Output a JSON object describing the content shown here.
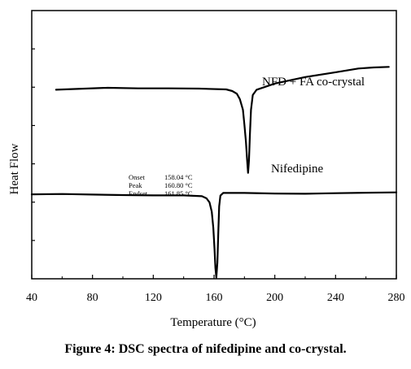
{
  "caption": "Figure 4: DSC spectra of nifedipine and co-crystal.",
  "chart_data": {
    "type": "line",
    "title": "",
    "xlabel": "Temperature (°C)",
    "ylabel": "Heat Flow",
    "xlim": [
      40,
      280
    ],
    "x_ticks": [
      40,
      80,
      120,
      160,
      200,
      240,
      280
    ],
    "y_tick_labels_shown": false,
    "grid": false,
    "legend": "none",
    "series": [
      {
        "name": "NFD + FA co-crystal",
        "color": "#000000",
        "points": [
          [
            56,
            0.705
          ],
          [
            70,
            0.708
          ],
          [
            90,
            0.712
          ],
          [
            110,
            0.71
          ],
          [
            130,
            0.71
          ],
          [
            150,
            0.709
          ],
          [
            168,
            0.706
          ],
          [
            172,
            0.7
          ],
          [
            175,
            0.69
          ],
          [
            177,
            0.67
          ],
          [
            179,
            0.63
          ],
          [
            180,
            0.575
          ],
          [
            181,
            0.51
          ],
          [
            181.8,
            0.44
          ],
          [
            182.4,
            0.395
          ],
          [
            183,
            0.44
          ],
          [
            183.6,
            0.54
          ],
          [
            184.3,
            0.63
          ],
          [
            185.5,
            0.685
          ],
          [
            188,
            0.705
          ],
          [
            200,
            0.728
          ],
          [
            220,
            0.752
          ],
          [
            240,
            0.77
          ],
          [
            255,
            0.784
          ],
          [
            265,
            0.788
          ],
          [
            275,
            0.79
          ]
        ]
      },
      {
        "name": "Nifedipine",
        "color": "#000000",
        "points": [
          [
            40,
            0.315
          ],
          [
            60,
            0.316
          ],
          [
            80,
            0.314
          ],
          [
            100,
            0.312
          ],
          [
            120,
            0.311
          ],
          [
            140,
            0.311
          ],
          [
            152,
            0.308
          ],
          [
            155,
            0.3
          ],
          [
            157,
            0.285
          ],
          [
            158.5,
            0.25
          ],
          [
            159.5,
            0.19
          ],
          [
            160.3,
            0.11
          ],
          [
            160.9,
            0.04
          ],
          [
            161.5,
            0.005
          ],
          [
            162.2,
            0.06
          ],
          [
            162.8,
            0.17
          ],
          [
            163.4,
            0.27
          ],
          [
            164.2,
            0.31
          ],
          [
            166,
            0.32
          ],
          [
            180,
            0.32
          ],
          [
            200,
            0.318
          ],
          [
            220,
            0.317
          ],
          [
            240,
            0.319
          ],
          [
            260,
            0.321
          ],
          [
            280,
            0.322
          ]
        ]
      }
    ],
    "annotations": [
      {
        "label": "Onset",
        "value": "158.04 °C"
      },
      {
        "label": "Peak",
        "value": "160.80 °C"
      },
      {
        "label": "Endset",
        "value": "161.85 °C"
      }
    ]
  }
}
